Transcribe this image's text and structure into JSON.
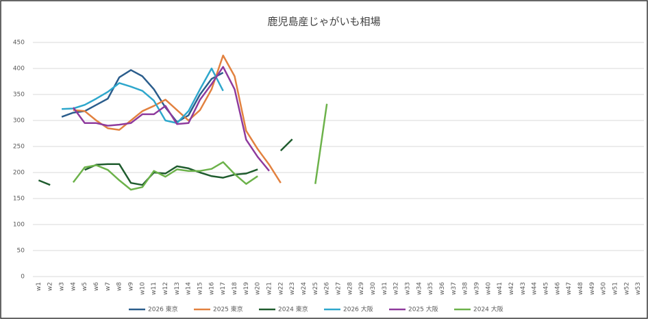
{
  "chart_data": {
    "type": "line",
    "title": "鹿児島産じゃがいも相場",
    "categories": [
      "w1",
      "w2",
      "w3",
      "w4",
      "w5",
      "w6",
      "w7",
      "w8",
      "w9",
      "w10",
      "w11",
      "w12",
      "w13",
      "w14",
      "w15",
      "w16",
      "w17",
      "w18",
      "w19",
      "w20",
      "w21",
      "w22",
      "w23",
      "w24",
      "w25",
      "w26",
      "w27",
      "w28",
      "w29",
      "w30",
      "w31",
      "w32",
      "w33",
      "w34",
      "w35",
      "w36",
      "w37",
      "w38",
      "w39",
      "w40",
      "w41",
      "w42",
      "w43",
      "w44",
      "w45",
      "w46",
      "w47",
      "w48",
      "w49",
      "w50",
      "w51",
      "w52",
      "w53"
    ],
    "ylim": [
      0,
      450
    ],
    "yticks": [
      0,
      50,
      100,
      150,
      200,
      250,
      300,
      350,
      400,
      450
    ],
    "grid": true,
    "legend": "bottom",
    "series": [
      {
        "name": "2026 東京",
        "color": "#2b5d8c",
        "values": [
          null,
          null,
          307,
          315,
          318,
          330,
          342,
          383,
          397,
          385,
          360,
          325,
          297,
          310,
          350,
          380,
          392,
          null,
          null,
          null,
          null,
          null,
          null,
          null,
          null,
          null,
          null,
          null,
          null,
          null,
          null,
          null,
          null,
          null,
          null,
          null,
          null,
          null,
          null,
          null,
          null,
          null,
          null,
          null,
          null,
          null,
          null,
          null,
          null,
          null,
          null,
          null,
          null
        ]
      },
      {
        "name": "2025 東京",
        "color": "#e2813f",
        "values": [
          null,
          null,
          null,
          320,
          318,
          300,
          285,
          282,
          300,
          318,
          328,
          340,
          320,
          300,
          320,
          360,
          425,
          385,
          280,
          245,
          215,
          180,
          null,
          null,
          null,
          null,
          null,
          null,
          null,
          null,
          null,
          null,
          null,
          null,
          null,
          null,
          null,
          null,
          null,
          null,
          null,
          null,
          null,
          null,
          null,
          null,
          null,
          null,
          null,
          null,
          null,
          null,
          null
        ]
      },
      {
        "name": "2024 東京",
        "color": "#1f5c2e",
        "values": [
          185,
          176,
          null,
          null,
          205,
          215,
          216,
          216,
          180,
          176,
          200,
          198,
          212,
          208,
          200,
          193,
          190,
          196,
          198,
          206,
          null,
          242,
          264,
          null,
          null,
          null,
          null,
          null,
          null,
          null,
          null,
          null,
          null,
          null,
          null,
          null,
          null,
          null,
          null,
          null,
          null,
          null,
          null,
          null,
          null,
          null,
          null,
          null,
          null,
          null,
          null,
          null,
          null
        ]
      },
      {
        "name": "2026 大阪",
        "color": "#2ea7cc",
        "values": [
          null,
          null,
          322,
          323,
          330,
          342,
          355,
          372,
          365,
          357,
          338,
          300,
          295,
          318,
          360,
          400,
          357,
          null,
          null,
          null,
          null,
          null,
          null,
          null,
          null,
          null,
          null,
          null,
          null,
          null,
          null,
          null,
          null,
          null,
          null,
          null,
          null,
          null,
          null,
          null,
          null,
          null,
          null,
          null,
          null,
          null,
          null,
          null,
          null,
          null,
          null,
          null,
          null
        ]
      },
      {
        "name": "2025 大阪",
        "color": "#8e3a9d",
        "values": [
          null,
          null,
          null,
          325,
          295,
          295,
          290,
          292,
          295,
          312,
          312,
          328,
          293,
          295,
          340,
          370,
          403,
          360,
          263,
          230,
          203,
          null,
          null,
          null,
          null,
          null,
          null,
          null,
          null,
          null,
          null,
          null,
          null,
          null,
          null,
          null,
          null,
          null,
          null,
          null,
          null,
          null,
          null,
          null,
          null,
          null,
          null,
          null,
          null,
          null,
          null,
          null,
          null
        ]
      },
      {
        "name": "2024 大阪",
        "color": "#6cb24a",
        "values": [
          null,
          null,
          null,
          181,
          210,
          214,
          205,
          185,
          167,
          172,
          203,
          192,
          206,
          203,
          203,
          207,
          220,
          197,
          178,
          193,
          null,
          null,
          null,
          null,
          178,
          332,
          null,
          null,
          null,
          null,
          null,
          null,
          null,
          null,
          null,
          null,
          null,
          null,
          null,
          null,
          null,
          null,
          null,
          null,
          null,
          null,
          null,
          null,
          null,
          null,
          null,
          null,
          null
        ]
      }
    ]
  }
}
